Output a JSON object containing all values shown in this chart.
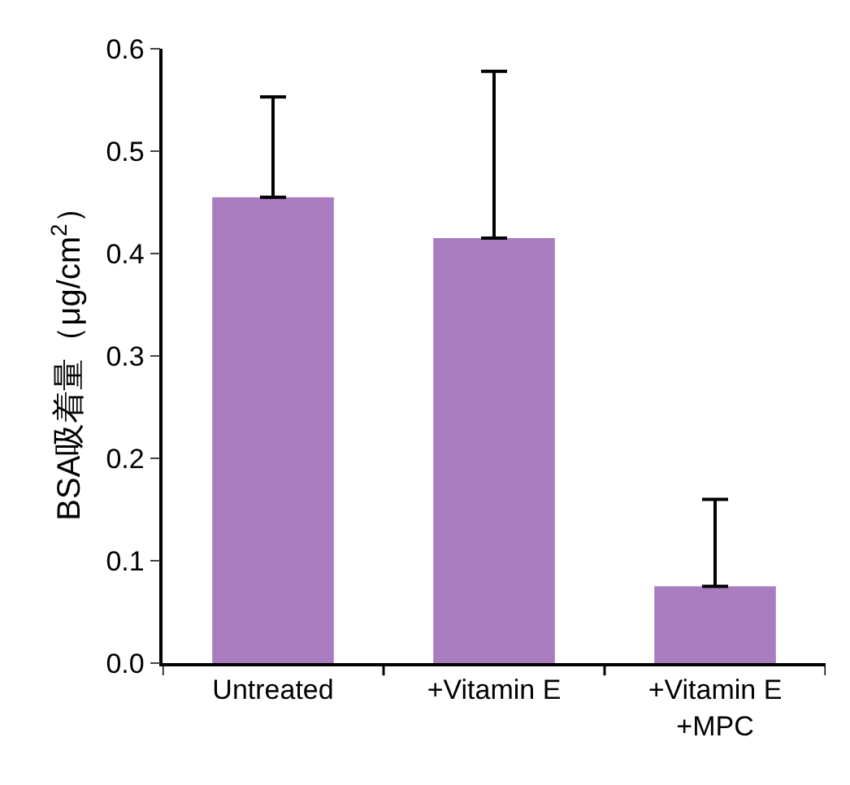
{
  "chart_data": {
    "type": "bar",
    "ylabel": "BSA吸着量（μg/cm$^{2}$）",
    "categories": [
      "Untreated",
      "+Vitamin E",
      "+Vitamin E\n+MPC"
    ],
    "values": [
      0.455,
      0.415,
      0.075
    ],
    "errors": [
      [
        0.455,
        0.553
      ],
      [
        0.415,
        0.578
      ],
      [
        0.075,
        0.16
      ]
    ],
    "color": "#a97cc0",
    "ylim": [
      0,
      0.6
    ],
    "yticks": [
      {
        "value": 0,
        "label": "0.0"
      },
      0.1,
      0.2,
      0.3,
      0.4,
      0.5,
      0.6
    ]
  }
}
